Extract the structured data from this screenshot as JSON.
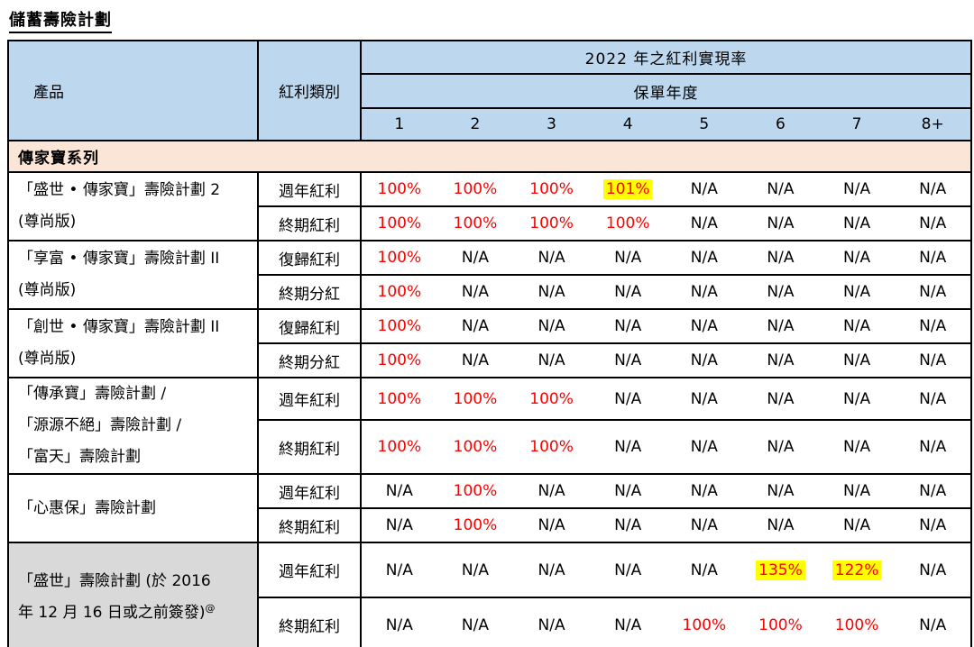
{
  "page": {
    "title": "儲蓄壽險計劃"
  },
  "colors": {
    "header_bg": "#BDD7EE",
    "section_bg": "#FBE5D6",
    "muted_product_bg": "#D9D9D9",
    "percent_text": "#FF0000",
    "highlight_bg": "#FFFF00"
  },
  "table": {
    "header": {
      "product_label": "產品",
      "dividend_type_label": "紅利類別",
      "group_label": "2022 年之紅利實現率",
      "policy_year_label": "保單年度",
      "year_columns": [
        "1",
        "2",
        "3",
        "4",
        "5",
        "6",
        "7",
        "8+"
      ]
    },
    "section_header": "傳家寶系列",
    "products": [
      {
        "name": "「盛世 • 傳家寶」壽險計劃 2 (尊尚版)",
        "name_lines": [
          "「盛世 • 傳家寶」壽險計劃 2",
          "(尊尚版)"
        ],
        "rows": [
          {
            "dividend_type": "週年紅利",
            "values": [
              "100%",
              "100%",
              "100%",
              "101%",
              "N/A",
              "N/A",
              "N/A",
              "N/A"
            ],
            "highlighted_columns": [
              3
            ]
          },
          {
            "dividend_type": "終期紅利",
            "values": [
              "100%",
              "100%",
              "100%",
              "100%",
              "N/A",
              "N/A",
              "N/A",
              "N/A"
            ],
            "highlighted_columns": []
          }
        ]
      },
      {
        "name": "「享富 • 傳家寶」壽險計劃 II (尊尚版)",
        "name_lines": [
          "「享富 • 傳家寶」壽險計劃 II",
          "(尊尚版)"
        ],
        "rows": [
          {
            "dividend_type": "復歸紅利",
            "values": [
              "100%",
              "N/A",
              "N/A",
              "N/A",
              "N/A",
              "N/A",
              "N/A",
              "N/A"
            ],
            "highlighted_columns": []
          },
          {
            "dividend_type": "終期分紅",
            "values": [
              "100%",
              "N/A",
              "N/A",
              "N/A",
              "N/A",
              "N/A",
              "N/A",
              "N/A"
            ],
            "highlighted_columns": []
          }
        ]
      },
      {
        "name": "「創世 • 傳家寶」壽險計劃 II (尊尚版)",
        "name_lines": [
          "「創世 • 傳家寶」壽險計劃 II",
          "(尊尚版)"
        ],
        "rows": [
          {
            "dividend_type": "復歸紅利",
            "values": [
              "100%",
              "N/A",
              "N/A",
              "N/A",
              "N/A",
              "N/A",
              "N/A",
              "N/A"
            ],
            "highlighted_columns": []
          },
          {
            "dividend_type": "終期分紅",
            "values": [
              "100%",
              "N/A",
              "N/A",
              "N/A",
              "N/A",
              "N/A",
              "N/A",
              "N/A"
            ],
            "highlighted_columns": []
          }
        ]
      },
      {
        "name": "「傳承寶」壽險計劃 / 「源源不絕」壽險計劃 / 「富天」壽險計劃",
        "name_lines": [
          "「傳承寶」壽險計劃 /",
          "「源源不絕」壽險計劃 /",
          "「富天」壽險計劃"
        ],
        "rows": [
          {
            "dividend_type": "週年紅利",
            "values": [
              "100%",
              "100%",
              "100%",
              "N/A",
              "N/A",
              "N/A",
              "N/A",
              "N/A"
            ],
            "highlighted_columns": []
          },
          {
            "dividend_type": "終期紅利",
            "values": [
              "100%",
              "100%",
              "100%",
              "N/A",
              "N/A",
              "N/A",
              "N/A",
              "N/A"
            ],
            "highlighted_columns": []
          }
        ]
      },
      {
        "name": "「心惠保」壽險計劃",
        "name_lines": [
          "「心惠保」壽險計劃"
        ],
        "rows": [
          {
            "dividend_type": "週年紅利",
            "values": [
              "N/A",
              "100%",
              "N/A",
              "N/A",
              "N/A",
              "N/A",
              "N/A",
              "N/A"
            ],
            "highlighted_columns": []
          },
          {
            "dividend_type": "終期紅利",
            "values": [
              "N/A",
              "100%",
              "N/A",
              "N/A",
              "N/A",
              "N/A",
              "N/A",
              "N/A"
            ],
            "highlighted_columns": []
          }
        ]
      },
      {
        "name": "「盛世」壽險計劃 (於 2016 年 12 月 16 日或之前簽發)",
        "name_lines": [
          "「盛世」壽險計劃 (於 2016",
          "年 12 月 16 日或之前簽發)"
        ],
        "superscript": "@",
        "muted": true,
        "rows": [
          {
            "dividend_type": "週年紅利",
            "values": [
              "N/A",
              "N/A",
              "N/A",
              "N/A",
              "N/A",
              "135%",
              "122%",
              "N/A"
            ],
            "highlighted_columns": [
              5,
              6
            ]
          },
          {
            "dividend_type": "終期紅利",
            "values": [
              "N/A",
              "N/A",
              "N/A",
              "N/A",
              "100%",
              "100%",
              "100%",
              "N/A"
            ],
            "highlighted_columns": []
          }
        ]
      }
    ]
  }
}
